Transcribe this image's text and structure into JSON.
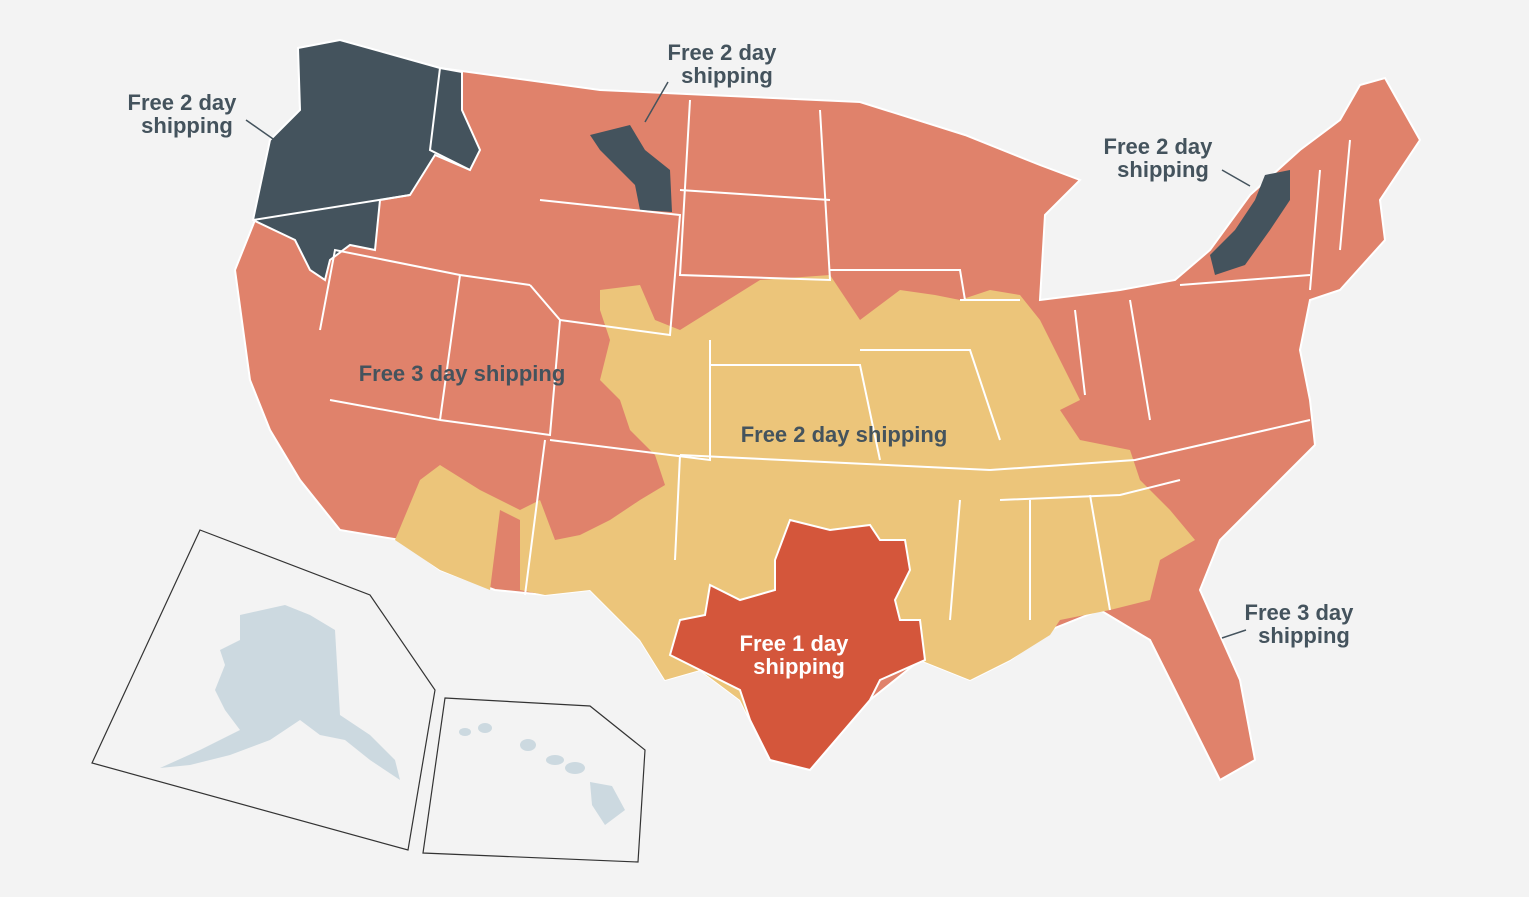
{
  "labels": [
    {
      "lines": [
        "Free 2 day",
        "shipping"
      ]
    },
    {
      "lines": [
        "Free 2 day",
        "shipping"
      ]
    },
    {
      "lines": [
        "Free 2 day",
        "shipping"
      ]
    },
    {
      "lines": [
        "Free 3 day shipping"
      ]
    },
    {
      "lines": [
        "Free 2 day shipping"
      ]
    },
    {
      "lines": [
        "Free 1 day",
        "shipping"
      ]
    },
    {
      "lines": [
        "Free 3 day",
        "shipping"
      ]
    }
  ]
}
